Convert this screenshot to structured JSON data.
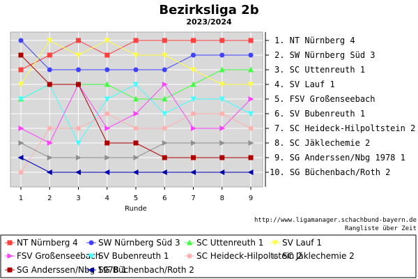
{
  "chart_data": {
    "type": "line",
    "title": "Bezirksliga 2b",
    "subtitle": "2023/2024",
    "xlabel": "Runde",
    "ylabel": "",
    "x": [
      1,
      2,
      3,
      4,
      5,
      6,
      7,
      8,
      9
    ],
    "ylim": [
      1,
      10
    ],
    "y_inverted": true,
    "grid": true,
    "legend_position": "bottom",
    "rank_labels": [
      "1. NT Nürnberg 4",
      "2. SW Nürnberg Süd 3",
      "3. SC Uttenreuth 1",
      "4. SV Lauf 1",
      "5. FSV Großenseebach",
      "6. SV Bubenreuth 1",
      "7. SC Heideck-Hilpoltstein 2",
      "8. SC Jäklechemie 2",
      "9. SG Anderssen/Nbg 1978 1",
      "10. SG Büchenbach/Roth 2"
    ],
    "source_url": "http://www.ligamanager.schachbund-bayern.de",
    "source_note": "Rangliste über Zeit",
    "series": [
      {
        "name": "NT Nürnberg 4",
        "color": "#ff4040",
        "marker": "square",
        "values": [
          3,
          2,
          1,
          2,
          1,
          1,
          1,
          1,
          1
        ]
      },
      {
        "name": "SW Nürnberg Süd 3",
        "color": "#4040ff",
        "marker": "circle",
        "values": [
          1,
          3,
          3,
          3,
          3,
          3,
          2,
          2,
          2
        ]
      },
      {
        "name": "SC Uttenreuth 1",
        "color": "#40ff40",
        "marker": "triangle-up",
        "values": [
          5,
          4,
          4,
          4,
          5,
          5,
          4,
          3,
          3
        ]
      },
      {
        "name": "SV Lauf 1",
        "color": "#ffff40",
        "marker": "triangle-down",
        "values": [
          4,
          1,
          2,
          1,
          2,
          2,
          3,
          4,
          4
        ]
      },
      {
        "name": "FSV Großenseebach",
        "color": "#ff40ff",
        "marker": "triangle-right",
        "values": [
          7,
          8,
          4,
          7,
          6,
          4,
          7,
          7,
          5
        ]
      },
      {
        "name": "SV Bubenreuth 1",
        "color": "#40ffff",
        "marker": "triangle-down",
        "values": [
          5,
          4,
          8,
          5,
          4,
          6,
          5,
          5,
          6
        ]
      },
      {
        "name": "SC Heideck-Hilpoltstein 2",
        "color": "#ffb0b0",
        "marker": "circle",
        "values": [
          10,
          7,
          7,
          6,
          7,
          7,
          6,
          6,
          7
        ]
      },
      {
        "name": "SC Jäklechemie 2",
        "color": "#909090",
        "marker": "triangle-right",
        "values": [
          8,
          9,
          9,
          9,
          9,
          8,
          8,
          8,
          8
        ]
      },
      {
        "name": "SG Anderssen/Nbg 1978 1",
        "color": "#b00000",
        "marker": "square",
        "values": [
          2,
          4,
          4,
          8,
          8,
          9,
          9,
          9,
          9
        ]
      },
      {
        "name": "SG Büchenbach/Roth 2",
        "color": "#0000b0",
        "marker": "triangle-left",
        "values": [
          9,
          10,
          10,
          10,
          10,
          10,
          10,
          10,
          10
        ]
      }
    ]
  }
}
